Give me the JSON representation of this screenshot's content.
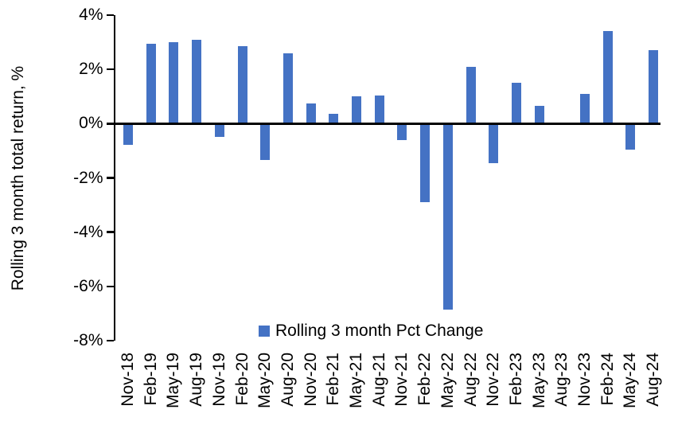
{
  "chart_data": {
    "type": "bar",
    "title": "",
    "ylabel": "Rolling 3 month total return, %",
    "xlabel": "",
    "ylim": [
      -8,
      4
    ],
    "ytick_step": 2,
    "ytick_labels": [
      "4%",
      "2%",
      "0%",
      "-2%",
      "-4%",
      "-6%",
      "-8%"
    ],
    "ytick_values": [
      4,
      2,
      0,
      -2,
      -4,
      -6,
      -8
    ],
    "categories": [
      "Nov-18",
      "Feb-19",
      "May-19",
      "Aug-19",
      "Nov-19",
      "Feb-20",
      "May-20",
      "Aug-20",
      "Nov-20",
      "Feb-21",
      "May-21",
      "Aug-21",
      "Nov-21",
      "Feb-22",
      "May-22",
      "Aug-22",
      "Nov-22",
      "Feb-23",
      "May-23",
      "Aug-23",
      "Nov-23",
      "Feb-24",
      "May-24",
      "Aug-24"
    ],
    "values": [
      -0.75,
      2.95,
      3.0,
      3.1,
      -0.45,
      2.85,
      -1.3,
      2.6,
      0.75,
      0.35,
      1.0,
      1.05,
      -0.55,
      -2.85,
      -6.8,
      2.1,
      -1.4,
      1.5,
      0.65,
      0.0,
      1.1,
      3.4,
      -0.9,
      2.7
    ],
    "legend": {
      "label": "Rolling 3 month Pct Change",
      "position": "bottom"
    },
    "grid": false,
    "colors": {
      "bar": "#4472C4",
      "axis": "#000000",
      "text": "#000000",
      "background": "#FFFFFF"
    }
  }
}
